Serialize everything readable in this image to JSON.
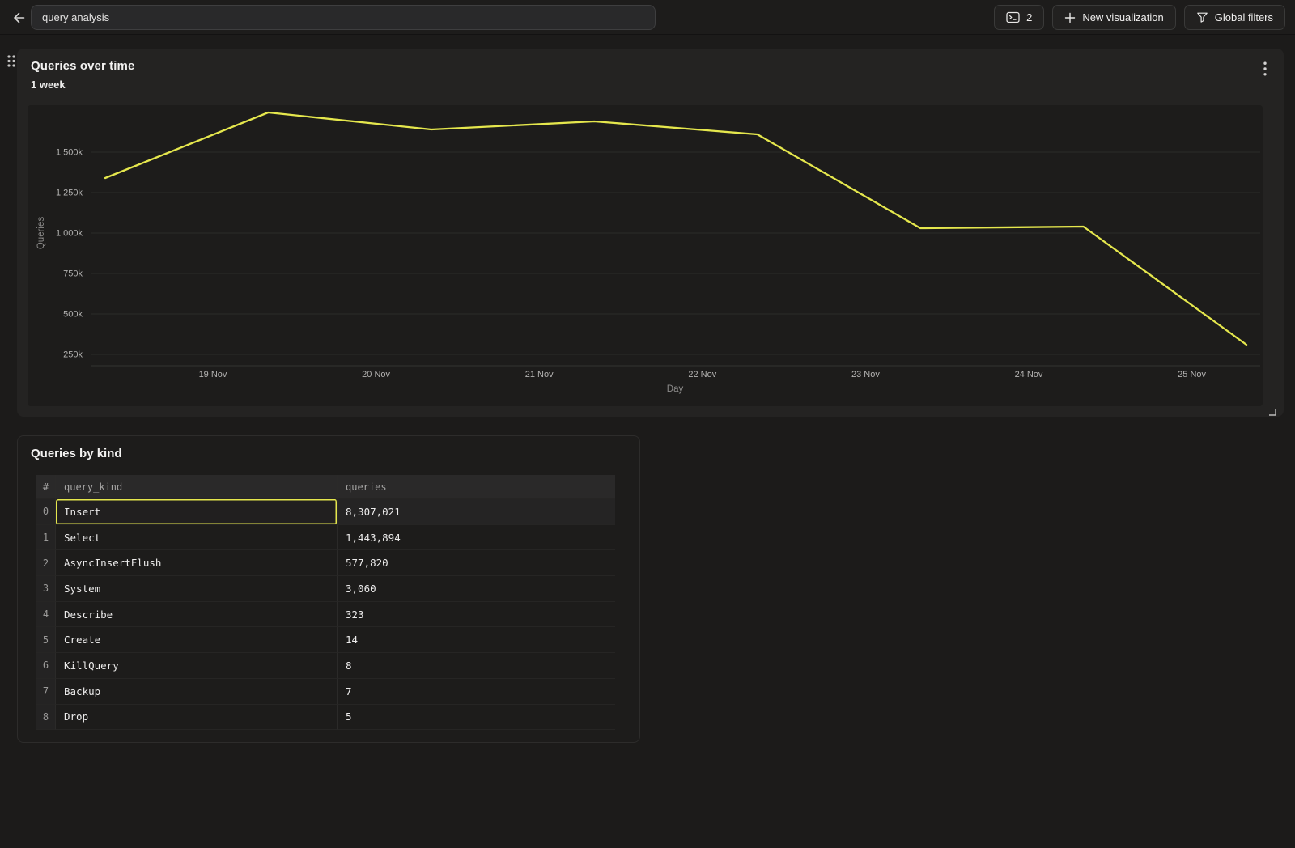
{
  "topbar": {
    "back_button": {
      "icon": "arrow-left"
    },
    "title_input": {
      "value": "query analysis"
    },
    "viz_count_button": {
      "count": "2",
      "icon": "terminal-panel"
    },
    "new_visualization_button": {
      "label": "New visualization",
      "icon": "plus"
    },
    "global_filters_button": {
      "label": "Global filters",
      "icon": "funnel"
    }
  },
  "chart_panel": {
    "title": "Queries over time",
    "subtitle": "1 week",
    "menu_icon": "kebab-vertical"
  },
  "chart_data": {
    "type": "line",
    "title": "Queries over time",
    "subtitle": "1 week",
    "xlabel": "Day",
    "ylabel": "Queries",
    "x_tick_labels": [
      "19 Nov",
      "20 Nov",
      "21 Nov",
      "22 Nov",
      "23 Nov",
      "24 Nov",
      "25 Nov"
    ],
    "y_tick_labels": [
      "1 500k",
      "1 250k",
      "1 000k",
      "750k",
      "500k",
      "250k"
    ],
    "y_tick_values": [
      1500000,
      1250000,
      1000000,
      750000,
      500000,
      250000
    ],
    "ylim": [
      250000,
      1800000
    ],
    "grid": "horizontal",
    "legend": "none",
    "series": [
      {
        "name": "Queries",
        "color": "#e5e74d",
        "x": [
          "18 Nov",
          "19 Nov",
          "20 Nov",
          "21 Nov",
          "22 Nov",
          "23 Nov",
          "24 Nov",
          "25 Nov"
        ],
        "values": [
          1340000,
          1745000,
          1640000,
          1690000,
          1610000,
          1030000,
          1040000,
          310000
        ]
      }
    ]
  },
  "table_panel": {
    "title": "Queries by kind",
    "columns": [
      "#",
      "query_kind",
      "queries"
    ],
    "rows": [
      {
        "index": "0",
        "query_kind": "Insert",
        "queries": "8,307,021",
        "selected": true
      },
      {
        "index": "1",
        "query_kind": "Select",
        "queries": "1,443,894",
        "selected": false
      },
      {
        "index": "2",
        "query_kind": "AsyncInsertFlush",
        "queries": "577,820",
        "selected": false
      },
      {
        "index": "3",
        "query_kind": "System",
        "queries": "3,060",
        "selected": false
      },
      {
        "index": "4",
        "query_kind": "Describe",
        "queries": "323",
        "selected": false
      },
      {
        "index": "5",
        "query_kind": "Create",
        "queries": "14",
        "selected": false
      },
      {
        "index": "6",
        "query_kind": "KillQuery",
        "queries": "8",
        "selected": false
      },
      {
        "index": "7",
        "query_kind": "Backup",
        "queries": "7",
        "selected": false
      },
      {
        "index": "8",
        "query_kind": "Drop",
        "queries": "5",
        "selected": false
      }
    ]
  },
  "colors": {
    "accent_yellow": "#e5e74d",
    "page_bg": "#1c1b1a",
    "panel_bg": "#242322",
    "plot_bg": "#1d1c1b"
  }
}
